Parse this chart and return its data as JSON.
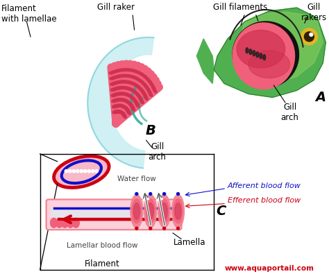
{
  "background_color": "#ffffff",
  "labels": {
    "filament_with_lamellae": "Filament\nwith lamellae",
    "gill_raker_top": "Gill raker",
    "gill_filaments": "Gill filaments",
    "gill_rakers_top_right": "Gill\nrakers",
    "B": "B",
    "gill_arch_center": "Gill\narch",
    "A": "A",
    "gill_arch_right": "Gill\narch",
    "water_flow": "Water flow",
    "afferent": "Afferent blood flow",
    "efferent": "Efferent blood flow",
    "C": "C",
    "lamella": "Lamella",
    "lamellar_blood_flow": "Lamellar blood flow",
    "filament_bottom": "Filament",
    "website": "www.aquaportail.com"
  },
  "colors": {
    "pink_gill": "#f0607a",
    "dark_pink": "#d03050",
    "med_pink": "#f08090",
    "light_pink": "#f8b8c8",
    "very_light_pink": "#fdd0da",
    "blue_vessel": "#1010cc",
    "red_vessel": "#cc0010",
    "light_blue_arch": "#c8eef2",
    "mid_blue_arch": "#90d8e0",
    "green_fish": "#50b050",
    "green_dark": "#308030",
    "green_light": "#90d060",
    "yellow_eye": "#e0b820",
    "white": "#ffffff",
    "black": "#000000",
    "afferent_color": "#1010cc",
    "efferent_color": "#cc0010",
    "website_color": "#cc0010",
    "gray_arrow": "#888888",
    "oval_red": "#cc0010",
    "oval_blue": "#1010cc",
    "dark_red": "#aa0010"
  }
}
